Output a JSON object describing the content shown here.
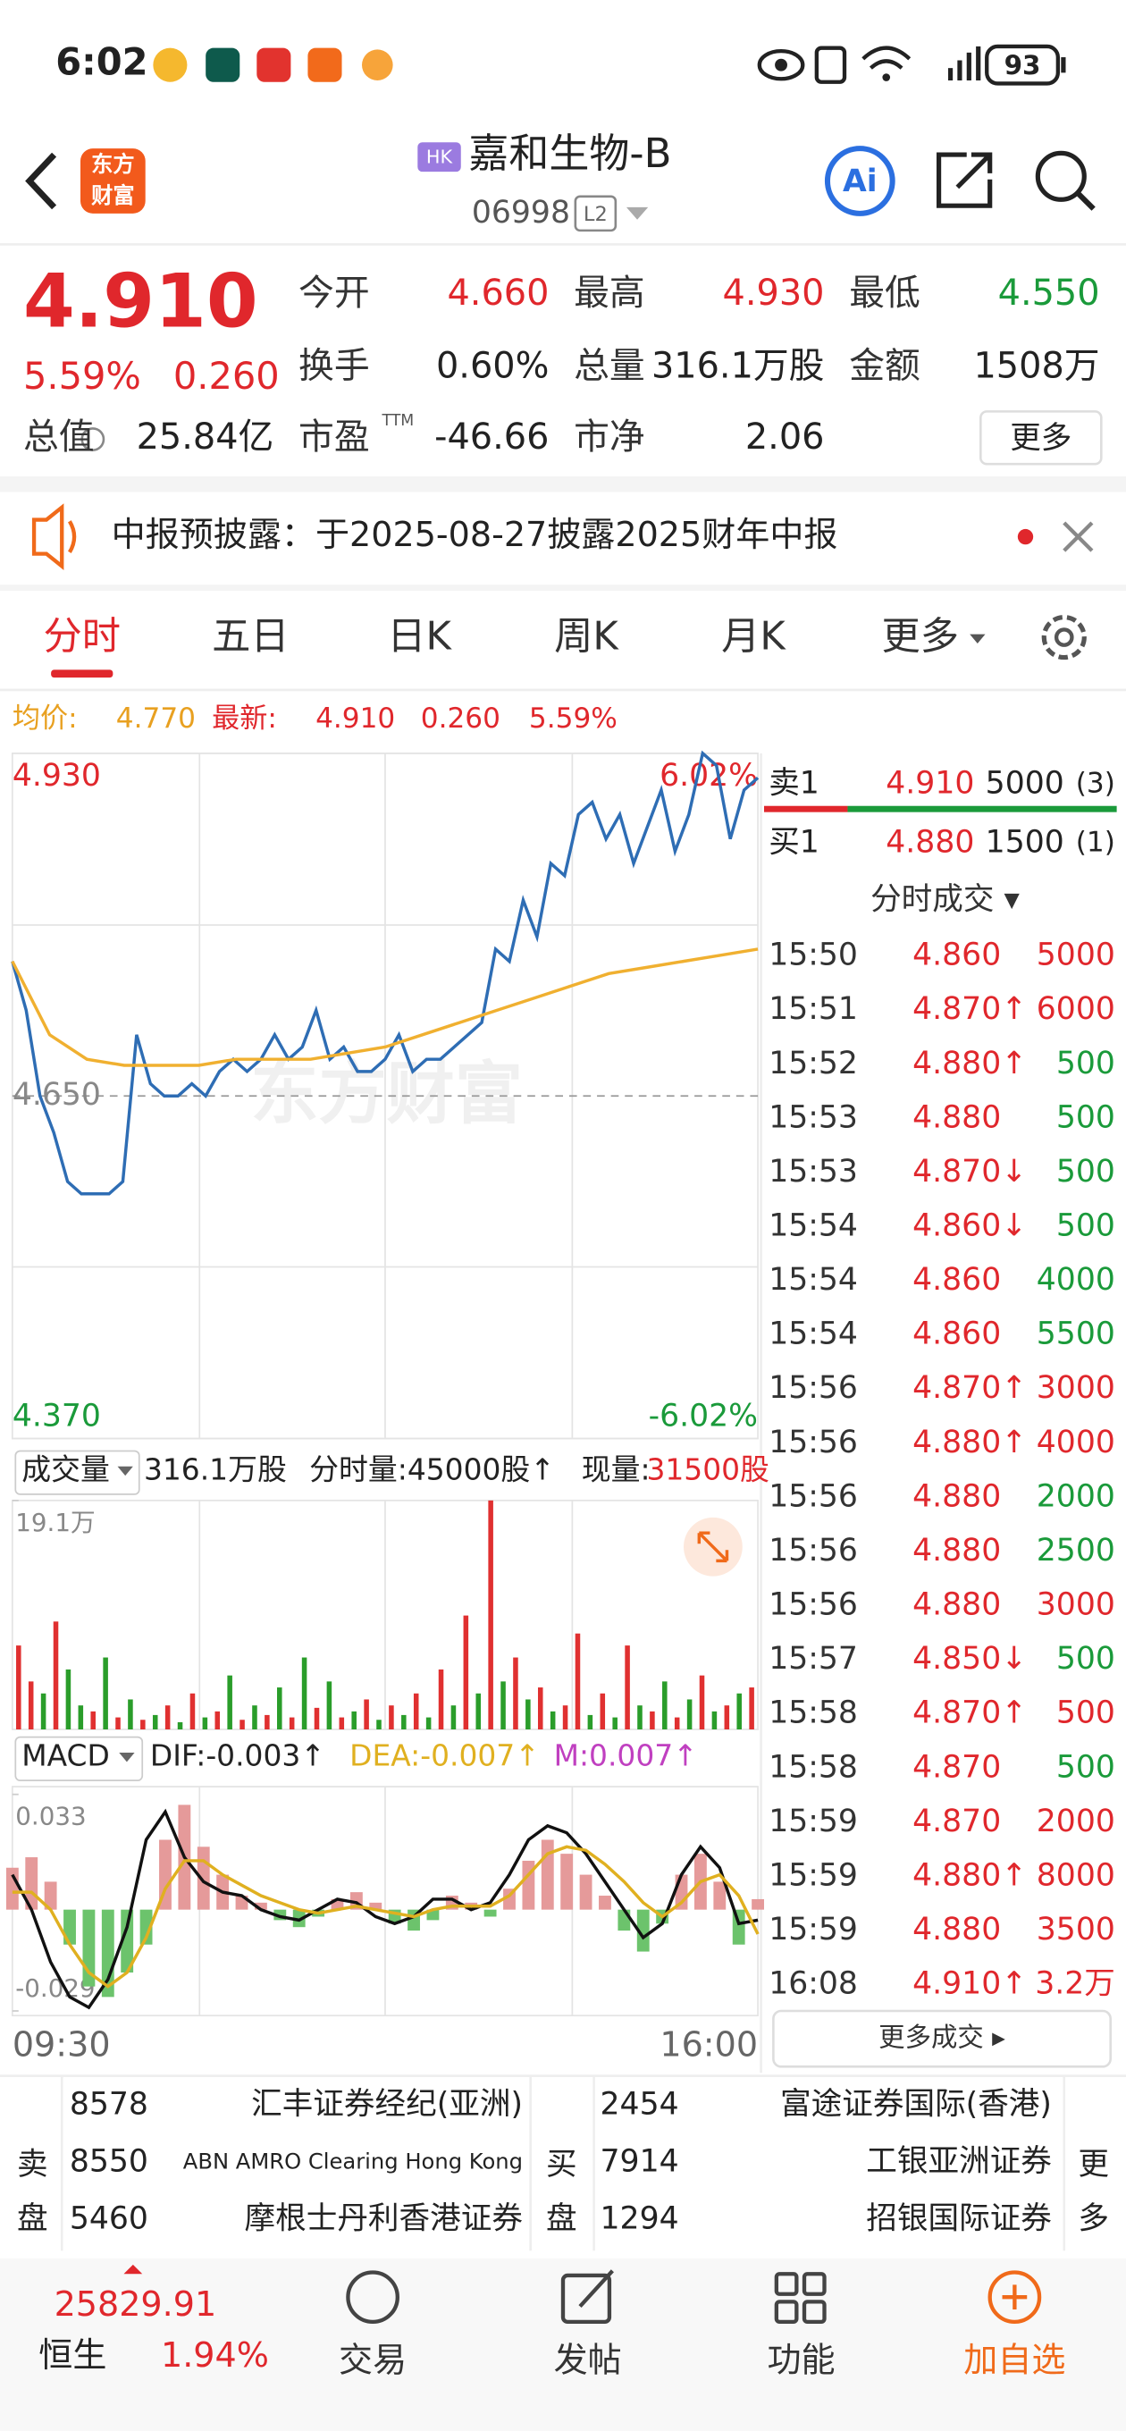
{
  "status_bar": {
    "time": "6:02",
    "battery": "93"
  },
  "header": {
    "logo_lines": [
      "东方",
      "财富"
    ],
    "market": "HK",
    "name": "嘉和生物-B",
    "code": "06998",
    "level": "L2",
    "ai": "Ai"
  },
  "quote": {
    "price": "4.910",
    "change_pct": "5.59%",
    "change": "0.260",
    "stats": [
      {
        "label": "今开",
        "value": "4.660",
        "color": "#e0272c"
      },
      {
        "label": "最高",
        "value": "4.930",
        "color": "#e0272c"
      },
      {
        "label": "最低",
        "value": "4.550",
        "color": "#1a9a3a"
      },
      {
        "label": "换手",
        "value": "0.60%",
        "color": "#222222"
      },
      {
        "label": "总量",
        "value": "316.1万股",
        "color": "#222222"
      },
      {
        "label": "金额",
        "value": "1508万",
        "color": "#222222"
      },
      {
        "label": "总值",
        "value": "25.84亿",
        "color": "#222222"
      },
      {
        "label": "市盈",
        "sup": "TTM",
        "value": "-46.66",
        "color": "#222222"
      },
      {
        "label": "市净",
        "value": "2.06",
        "color": "#222222"
      }
    ],
    "more": "更多"
  },
  "notice": {
    "text": "中报预披露：于2025-08-27披露2025财年中报"
  },
  "tabs": [
    "分时",
    "五日",
    "日K",
    "周K",
    "月K",
    "更多"
  ],
  "summary": {
    "avg_label": "均价:",
    "avg": "4.770",
    "latest_label": "最新:",
    "latest": "4.910",
    "change": "0.260",
    "change_pct": "5.59%"
  },
  "chart_data": [
    {
      "type": "line",
      "watermark": "东方财富",
      "ylim": [
        4.37,
        4.93
      ],
      "yticks": [
        {
          "value": 4.93,
          "label": "4.930"
        },
        {
          "value": 4.65,
          "label": "4.650"
        },
        {
          "value": 4.37,
          "label": "4.370"
        }
      ],
      "y2lim": [
        -6.02,
        6.02
      ],
      "y2ticks": [
        {
          "value": 6.02,
          "label": "6.02%"
        },
        {
          "value": -6.02,
          "label": "-6.02%"
        }
      ],
      "xlabels": [
        "09:30",
        "16:00"
      ],
      "series": [
        {
          "color": "#2e6db4",
          "values": [
            4.76,
            4.72,
            4.65,
            4.62,
            4.58,
            4.57,
            4.57,
            4.57,
            4.58,
            4.7,
            4.66,
            4.65,
            4.65,
            4.66,
            4.65,
            4.67,
            4.68,
            4.67,
            4.68,
            4.7,
            4.68,
            4.69,
            4.72,
            4.68,
            4.69,
            4.67,
            4.67,
            4.68,
            4.7,
            4.67,
            4.68,
            4.68,
            4.69,
            4.7,
            4.71,
            4.77,
            4.76,
            4.81,
            4.78,
            4.84,
            4.83,
            4.88,
            4.89,
            4.86,
            4.88,
            4.84,
            4.87,
            4.9,
            4.85,
            4.88,
            4.93,
            4.92,
            4.86,
            4.9,
            4.91
          ]
        },
        {
          "color": "#f0b030",
          "values": [
            4.76,
            4.7,
            4.68,
            4.675,
            4.675,
            4.675,
            4.68,
            4.68,
            4.68,
            4.685,
            4.69,
            4.7,
            4.71,
            4.72,
            4.73,
            4.74,
            4.75,
            4.755,
            4.76,
            4.765,
            4.77
          ]
        }
      ]
    },
    {
      "type": "bar",
      "label": "成交量",
      "total": "316.1万股",
      "period_volume": "分时量:45000股↑",
      "current_label": "现量:",
      "current": "31500股",
      "ylim": [
        0,
        191000
      ],
      "yticks": [
        {
          "value": 191000,
          "label": "19.1万"
        }
      ],
      "series": [
        {
          "color": "#e03030",
          "values": [
            70000,
            40000,
            null,
            90000,
            null,
            null,
            15000,
            null,
            10000,
            null,
            8000,
            null,
            20000,
            null,
            30000,
            null,
            15000,
            null,
            8000,
            null,
            12000,
            null,
            10000,
            null,
            18000,
            null,
            10000,
            null,
            25000,
            null,
            20000,
            null,
            30000,
            null,
            50000,
            null,
            95000,
            null,
            191000,
            null,
            60000,
            null,
            35000,
            null,
            20000,
            80000,
            null,
            30000,
            null,
            70000,
            null,
            15000,
            null,
            10000,
            null,
            45000,
            null,
            20000,
            null,
            35000
          ]
        },
        {
          "color": "#2a9d2a",
          "values": [
            null,
            null,
            30000,
            null,
            50000,
            20000,
            null,
            60000,
            null,
            25000,
            null,
            12000,
            null,
            6000,
            null,
            10000,
            null,
            45000,
            null,
            20000,
            null,
            35000,
            null,
            60000,
            null,
            40000,
            null,
            15000,
            null,
            8000,
            null,
            12000,
            null,
            10000,
            null,
            20000,
            null,
            30000,
            null,
            40000,
            null,
            25000,
            null,
            15000,
            null,
            null,
            12000,
            null,
            10000,
            null,
            20000,
            null,
            40000,
            null,
            25000,
            null,
            15000,
            null,
            30000,
            null
          ]
        }
      ]
    },
    {
      "type": "macd",
      "label": "MACD",
      "dif": "DIF:-0.003↑",
      "dea": "DEA:-0.007↑",
      "m": "M:0.007↑",
      "ylim": [
        -0.029,
        0.033
      ],
      "yticks": [
        {
          "value": 0.033,
          "label": "0.033"
        },
        {
          "value": -0.029,
          "label": "-0.029"
        }
      ],
      "bar_colors": [
        "#e59a9a",
        "#6cc36c"
      ],
      "bars": [
        0.012,
        0.015,
        0.008,
        -0.01,
        -0.022,
        -0.025,
        -0.018,
        -0.01,
        0.02,
        0.03,
        0.018,
        0.01,
        0.004,
        0.002,
        -0.003,
        -0.005,
        -0.002,
        0.003,
        0.005,
        0.002,
        -0.004,
        -0.006,
        -0.003,
        0.004,
        0.002,
        -0.002,
        0.006,
        0.014,
        0.02,
        0.016,
        0.01,
        0.004,
        -0.006,
        -0.012,
        -0.004,
        0.01,
        0.016,
        0.008,
        -0.01,
        0.003
      ],
      "series": [
        {
          "color": "#111111",
          "values": [
            0.01,
            0.0,
            -0.015,
            -0.025,
            -0.028,
            -0.02,
            -0.005,
            0.02,
            0.028,
            0.015,
            0.008,
            0.005,
            0.004,
            0.0,
            -0.002,
            -0.003,
            0.0,
            0.003,
            0.002,
            -0.002,
            -0.004,
            -0.002,
            0.003,
            0.003,
            0.0,
            0.002,
            0.01,
            0.02,
            0.024,
            0.022,
            0.016,
            0.008,
            0.0,
            -0.008,
            -0.004,
            0.01,
            0.018,
            0.012,
            -0.004,
            -0.003
          ]
        },
        {
          "color": "#e0b020",
          "values": [
            0.005,
            0.005,
            0.0,
            -0.01,
            -0.018,
            -0.022,
            -0.018,
            -0.008,
            0.006,
            0.014,
            0.014,
            0.01,
            0.007,
            0.004,
            0.002,
            0.0,
            -0.001,
            0.0,
            0.001,
            0.0,
            -0.001,
            -0.002,
            0.0,
            0.001,
            0.001,
            0.001,
            0.004,
            0.01,
            0.016,
            0.018,
            0.017,
            0.013,
            0.008,
            0.002,
            -0.002,
            0.002,
            0.008,
            0.01,
            0.004,
            -0.007
          ]
        }
      ]
    }
  ],
  "book": [
    {
      "label": "卖1",
      "price": "4.910",
      "volume": "5000",
      "count": "(3)"
    },
    {
      "label": "买1",
      "price": "4.880",
      "volume": "1500",
      "count": "(1)"
    }
  ],
  "trades_title": "分时成交 ▾",
  "trades": [
    {
      "time": "15:50",
      "price": "4.860",
      "volume": "5000",
      "side": "buy"
    },
    {
      "time": "15:51",
      "price": "4.870↑",
      "volume": "6000",
      "side": "buy"
    },
    {
      "time": "15:52",
      "price": "4.880↑",
      "volume": "500",
      "side": "sell"
    },
    {
      "time": "15:53",
      "price": "4.880",
      "volume": "500",
      "side": "sell"
    },
    {
      "time": "15:53",
      "price": "4.870↓",
      "volume": "500",
      "side": "sell"
    },
    {
      "time": "15:54",
      "price": "4.860↓",
      "volume": "500",
      "side": "sell"
    },
    {
      "time": "15:54",
      "price": "4.860",
      "volume": "4000",
      "side": "sell"
    },
    {
      "time": "15:54",
      "price": "4.860",
      "volume": "5500",
      "side": "sell"
    },
    {
      "time": "15:56",
      "price": "4.870↑",
      "volume": "3000",
      "side": "buy"
    },
    {
      "time": "15:56",
      "price": "4.880↑",
      "volume": "4000",
      "side": "buy"
    },
    {
      "time": "15:56",
      "price": "4.880",
      "volume": "2000",
      "side": "sell"
    },
    {
      "time": "15:56",
      "price": "4.880",
      "volume": "2500",
      "side": "sell"
    },
    {
      "time": "15:56",
      "price": "4.880",
      "volume": "3000",
      "side": "buy"
    },
    {
      "time": "15:57",
      "price": "4.850↓",
      "volume": "500",
      "side": "sell"
    },
    {
      "time": "15:58",
      "price": "4.870↑",
      "volume": "500",
      "side": "buy"
    },
    {
      "time": "15:58",
      "price": "4.870",
      "volume": "500",
      "side": "sell"
    },
    {
      "time": "15:59",
      "price": "4.870",
      "volume": "2000",
      "side": "buy"
    },
    {
      "time": "15:59",
      "price": "4.880↑",
      "volume": "8000",
      "side": "buy"
    },
    {
      "time": "15:59",
      "price": "4.880",
      "volume": "3500",
      "side": "buy"
    },
    {
      "time": "16:08",
      "price": "4.910↑",
      "volume": "3.2万",
      "side": "buy"
    }
  ],
  "trades_more": "更多成交 ▸",
  "brokers": {
    "sell_label": [
      "卖",
      "盘"
    ],
    "buy_label": [
      "买",
      "盘"
    ],
    "more_label": [
      "更",
      "多"
    ],
    "sell": [
      [
        "8578",
        "汇丰证券经纪(亚洲)"
      ],
      [
        "8550",
        "ABN AMRO Clearing Hong Kong"
      ],
      [
        "5460",
        "摩根士丹利香港证券"
      ]
    ],
    "buy": [
      [
        "2454",
        "富途证券国际(香港)"
      ],
      [
        "7914",
        "工银亚洲证券"
      ],
      [
        "1294",
        "招银国际证券"
      ]
    ]
  },
  "index": {
    "value": "25829.91",
    "name": "恒生",
    "change_pct": "1.94%"
  },
  "nav": [
    "交易",
    "发帖",
    "功能",
    "加自选"
  ]
}
